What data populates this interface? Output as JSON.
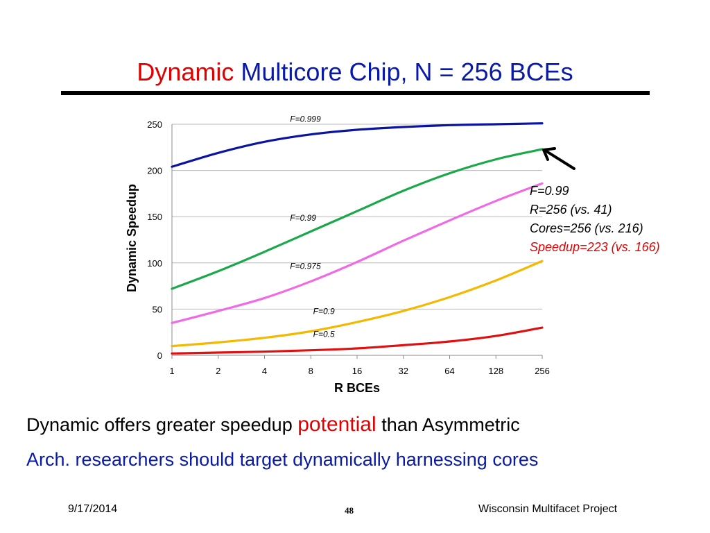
{
  "slide": {
    "title_word1": "Dynamic",
    "title_word2": "Multicore Chip, N = 256 BCEs",
    "callout": {
      "line1": "F=0.99",
      "line2": "R=256 (vs. 41)",
      "line3": "Cores=256 (vs. 216)",
      "line4": "Speedup=223 (vs. 166)"
    },
    "body": {
      "line1_pre": "Dynamic offers greater speedup",
      "line1_accent": "potential",
      "line1_post": "than Asymmetric",
      "line2": "Arch. researchers should target dynamically harnessing cores"
    },
    "footer": {
      "date": "9/17/2014",
      "page": "48",
      "org": "Wisconsin Multifacet Project"
    }
  },
  "chart_data": {
    "type": "line",
    "xlabel": "R BCEs",
    "ylabel": "Dynamic Speedup",
    "x": [
      "1",
      "2",
      "4",
      "8",
      "16",
      "32",
      "64",
      "128",
      "256"
    ],
    "x_scale": "log2",
    "ylim": [
      0,
      250
    ],
    "yticks": [
      0,
      50,
      100,
      150,
      200,
      250
    ],
    "grid": "horizontal",
    "series": [
      {
        "name": "F=0.999",
        "color": "#0a14a0",
        "values": [
          204,
          219,
          231,
          239,
          244,
          247,
          249,
          250,
          251
        ]
      },
      {
        "name": "F=0.99",
        "color": "#1aa84a",
        "values": [
          72,
          91,
          112,
          134,
          156,
          178,
          197,
          212,
          223
        ]
      },
      {
        "name": "F=0.975",
        "color": "#f06ae6",
        "values": [
          35,
          48,
          62,
          80,
          101,
          124,
          146,
          167,
          186
        ]
      },
      {
        "name": "F=0.9",
        "color": "#f5b800",
        "values": [
          10,
          14,
          19,
          26,
          36,
          48,
          63,
          81,
          102
        ]
      },
      {
        "name": "F=0.5",
        "color": "#e01010",
        "values": [
          2,
          3,
          4,
          5.5,
          7.5,
          11,
          15,
          21,
          30
        ]
      }
    ]
  }
}
